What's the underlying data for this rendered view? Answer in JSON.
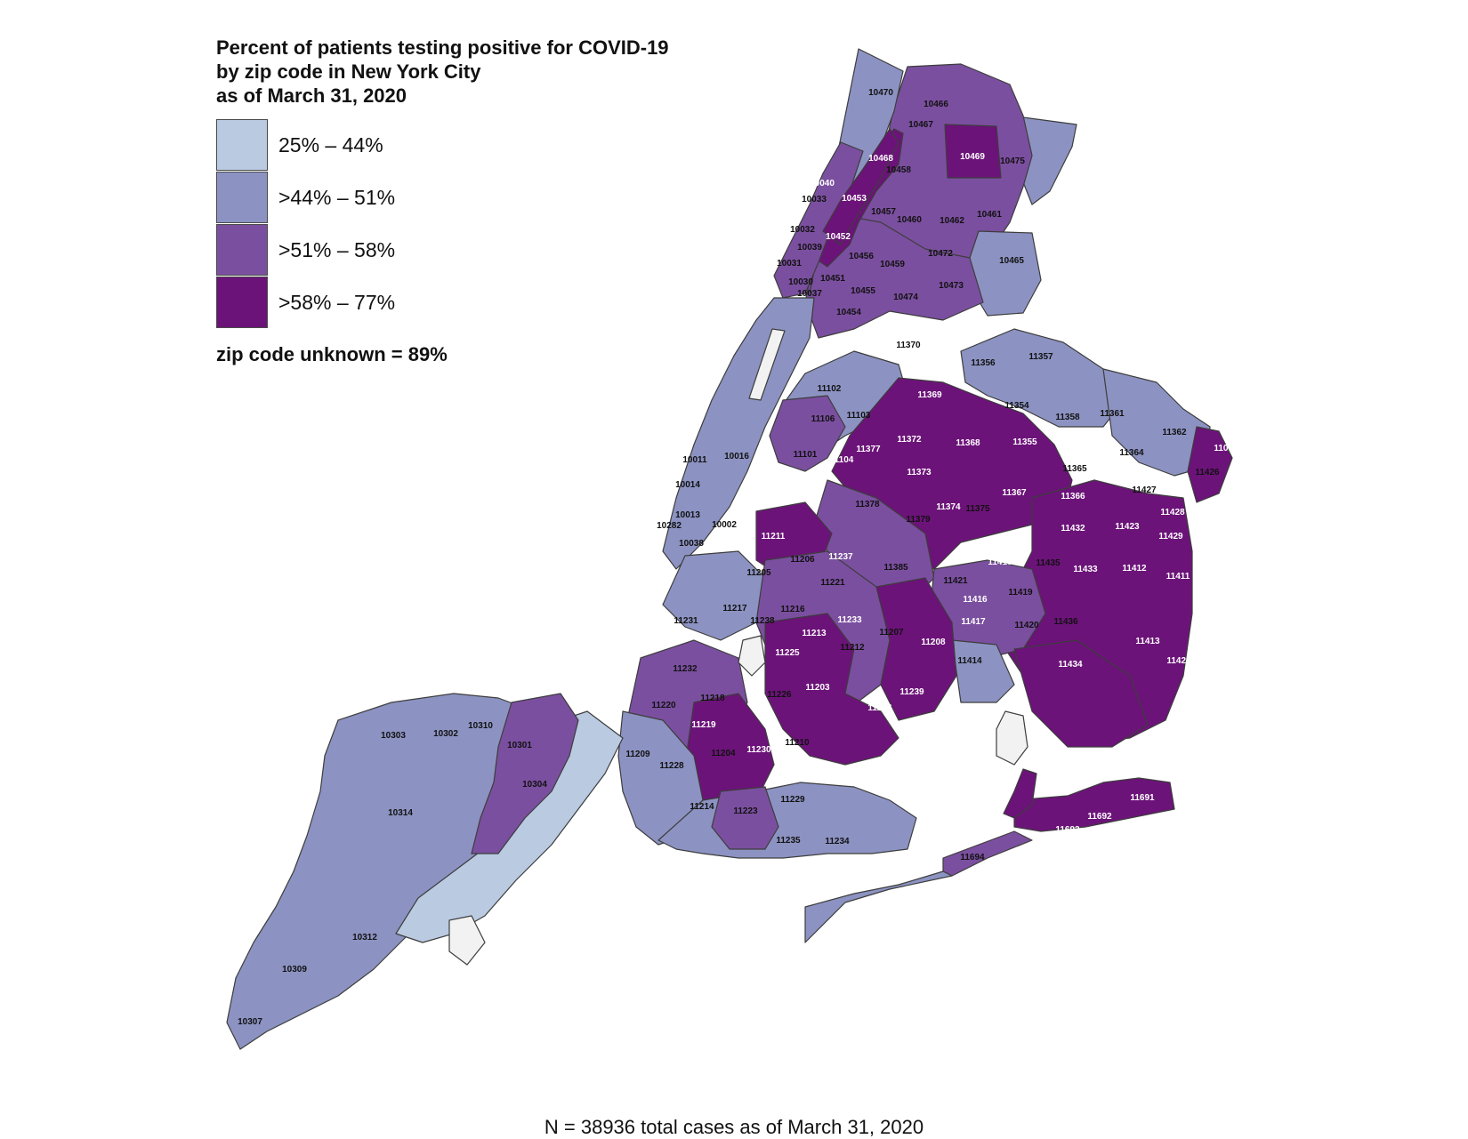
{
  "title_lines": [
    "Percent of patients testing positive for COVID-19",
    "by zip code in New York City",
    "as of March 31, 2020"
  ],
  "legend": [
    {
      "label": "25% – 44%",
      "color": "#b9cae1"
    },
    {
      "label": ">44% – 51%",
      "color": "#8c93c2"
    },
    {
      "label": ">51% – 58%",
      "color": "#7b4f9f"
    },
    {
      "label": ">58% – 77%",
      "color": "#6c1379"
    }
  ],
  "no_data_color": "#f2f2f2",
  "unknown_note": "zip code unknown = 89%",
  "footnote": "N = 38936 total cases as of March 31, 2020",
  "zip_labels": [
    {
      "zip": "10470",
      "class": 2
    },
    {
      "zip": "10466",
      "class": 2
    },
    {
      "zip": "10467",
      "class": 2
    },
    {
      "zip": "10469",
      "class": 3
    },
    {
      "zip": "10475",
      "class": 2
    },
    {
      "zip": "10468",
      "class": 3
    },
    {
      "zip": "10458",
      "class": 2
    },
    {
      "zip": "10040",
      "class": 3
    },
    {
      "zip": "10033",
      "class": 2
    },
    {
      "zip": "10453",
      "class": 3
    },
    {
      "zip": "10457",
      "class": 2
    },
    {
      "zip": "10460",
      "class": 2
    },
    {
      "zip": "10462",
      "class": 1
    },
    {
      "zip": "10461",
      "class": 2
    },
    {
      "zip": "10032",
      "class": 2
    },
    {
      "zip": "10452",
      "class": 3
    },
    {
      "zip": "10039",
      "class": 2
    },
    {
      "zip": "10456",
      "class": 2
    },
    {
      "zip": "10472",
      "class": 2
    },
    {
      "zip": "10031",
      "class": 2
    },
    {
      "zip": "10459",
      "class": 2
    },
    {
      "zip": "10465",
      "class": 1
    },
    {
      "zip": "10030",
      "class": 2
    },
    {
      "zip": "10451",
      "class": 2
    },
    {
      "zip": "10455",
      "class": 2
    },
    {
      "zip": "10473",
      "class": 2
    },
    {
      "zip": "10037",
      "class": 2
    },
    {
      "zip": "10474",
      "class": 2
    },
    {
      "zip": "10454",
      "class": 2
    },
    {
      "zip": "11370",
      "class": 1
    },
    {
      "zip": "11356",
      "class": 1
    },
    {
      "zip": "11357",
      "class": 1
    },
    {
      "zip": "11102",
      "class": 1
    },
    {
      "zip": "11369",
      "class": 3
    },
    {
      "zip": "11354",
      "class": 1
    },
    {
      "zip": "11106",
      "class": 1
    },
    {
      "zip": "11103",
      "class": 1
    },
    {
      "zip": "11358",
      "class": 1
    },
    {
      "zip": "11361",
      "class": 1
    },
    {
      "zip": "11362",
      "class": 1
    },
    {
      "zip": "11372",
      "class": 3
    },
    {
      "zip": "11368",
      "class": 3
    },
    {
      "zip": "11355",
      "class": 3
    },
    {
      "zip": "11377",
      "class": 3
    },
    {
      "zip": "11004",
      "class": 3
    },
    {
      "zip": "11101",
      "class": 1
    },
    {
      "zip": "11104",
      "class": 3
    },
    {
      "zip": "11364",
      "class": 1
    },
    {
      "zip": "10011",
      "class": 0
    },
    {
      "zip": "10016",
      "class": 0
    },
    {
      "zip": "11365",
      "class": 2
    },
    {
      "zip": "11373",
      "class": 3
    },
    {
      "zip": "11426",
      "class": 1
    },
    {
      "zip": "10014",
      "class": 0
    },
    {
      "zip": "11427",
      "class": 2
    },
    {
      "zip": "11367",
      "class": 3
    },
    {
      "zip": "11366",
      "class": 3
    },
    {
      "zip": "11378",
      "class": 2
    },
    {
      "zip": "11374",
      "class": 3
    },
    {
      "zip": "11375",
      "class": 1
    },
    {
      "zip": "11428",
      "class": 3
    },
    {
      "zip": "10013",
      "class": 0
    },
    {
      "zip": "11379",
      "class": 2
    },
    {
      "zip": "10282",
      "class": 0
    },
    {
      "zip": "10002",
      "class": 1
    },
    {
      "zip": "11423",
      "class": 3
    },
    {
      "zip": "11432",
      "class": 3
    },
    {
      "zip": "11211",
      "class": 3
    },
    {
      "zip": "11429",
      "class": 3
    },
    {
      "zip": "10038",
      "class": 0
    },
    {
      "zip": "11415",
      "class": 3
    },
    {
      "zip": "11237",
      "class": 3
    },
    {
      "zip": "11206",
      "class": 2
    },
    {
      "zip": "11418",
      "class": 3
    },
    {
      "zip": "11435",
      "class": 1
    },
    {
      "zip": "11385",
      "class": 2
    },
    {
      "zip": "11433",
      "class": 3
    },
    {
      "zip": "11412",
      "class": 3
    },
    {
      "zip": "11205",
      "class": 2
    },
    {
      "zip": "11411",
      "class": 3
    },
    {
      "zip": "11221",
      "class": 2
    },
    {
      "zip": "11421",
      "class": 2
    },
    {
      "zip": "11419",
      "class": 2
    },
    {
      "zip": "11217",
      "class": 1
    },
    {
      "zip": "11216",
      "class": 1
    },
    {
      "zip": "11416",
      "class": 3
    },
    {
      "zip": "11231",
      "class": 1
    },
    {
      "zip": "11238",
      "class": 1
    },
    {
      "zip": "11233",
      "class": 3
    },
    {
      "zip": "11436",
      "class": 2
    },
    {
      "zip": "11417",
      "class": 3
    },
    {
      "zip": "11420",
      "class": 2
    },
    {
      "zip": "11213",
      "class": 3
    },
    {
      "zip": "11207",
      "class": 2
    },
    {
      "zip": "11208",
      "class": 3
    },
    {
      "zip": "11413",
      "class": 3
    },
    {
      "zip": "11212",
      "class": 2
    },
    {
      "zip": "11225",
      "class": 3
    },
    {
      "zip": "11232",
      "class": 2
    },
    {
      "zip": "11414",
      "class": 1
    },
    {
      "zip": "11422",
      "class": 3
    },
    {
      "zip": "11434",
      "class": 3
    },
    {
      "zip": "11203",
      "class": 3
    },
    {
      "zip": "11239",
      "class": 3
    },
    {
      "zip": "11218",
      "class": 2
    },
    {
      "zip": "11226",
      "class": 2
    },
    {
      "zip": "11220",
      "class": 2
    },
    {
      "zip": "11236",
      "class": 3
    },
    {
      "zip": "11219",
      "class": 3
    },
    {
      "zip": "10310",
      "class": 1
    },
    {
      "zip": "10303",
      "class": 1
    },
    {
      "zip": "10302",
      "class": 1
    },
    {
      "zip": "10301",
      "class": 2
    },
    {
      "zip": "11210",
      "class": 2
    },
    {
      "zip": "11204",
      "class": 2
    },
    {
      "zip": "11230",
      "class": 3
    },
    {
      "zip": "11209",
      "class": 1
    },
    {
      "zip": "11228",
      "class": 1
    },
    {
      "zip": "10304",
      "class": 2
    },
    {
      "zip": "11214",
      "class": 1
    },
    {
      "zip": "11229",
      "class": 1
    },
    {
      "zip": "11691",
      "class": 3
    },
    {
      "zip": "11223",
      "class": 2
    },
    {
      "zip": "10314",
      "class": 1
    },
    {
      "zip": "11692",
      "class": 3
    },
    {
      "zip": "11693",
      "class": 3
    },
    {
      "zip": "11235",
      "class": 1
    },
    {
      "zip": "11234",
      "class": 1
    },
    {
      "zip": "11694",
      "class": 2
    },
    {
      "zip": "10312",
      "class": 1
    },
    {
      "zip": "10309",
      "class": 1
    },
    {
      "zip": "10307",
      "class": 1
    }
  ]
}
